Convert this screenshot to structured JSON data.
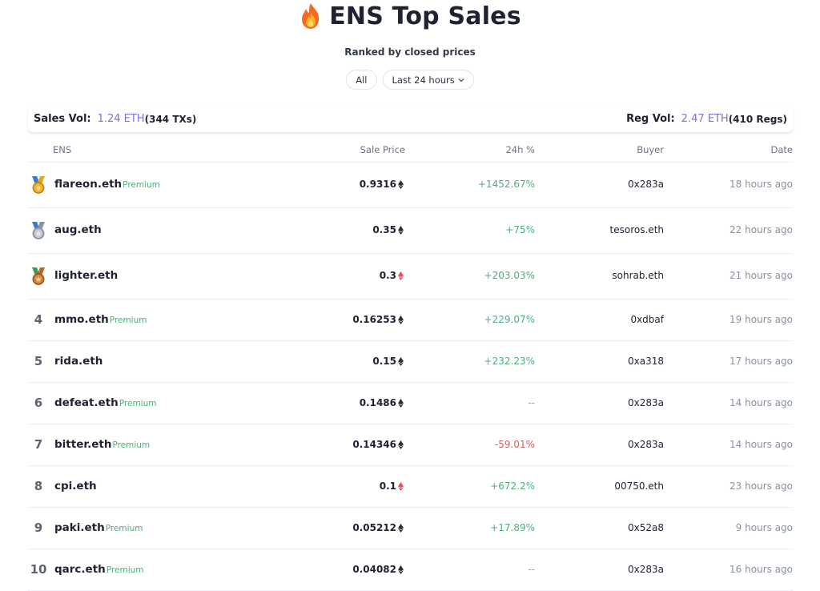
{
  "header": {
    "title": "ENS Top Sales",
    "title_icon": "fire-icon",
    "subtitle": "Ranked by closed prices"
  },
  "filters": {
    "category": "All",
    "period": "Last 24 hours",
    "period_icon": "chevron-down-icon"
  },
  "volume": {
    "sales_label": "Sales Vol:",
    "sales_value": "1.24 ETH",
    "sales_count": "(344 TXs)",
    "reg_label": "Reg Vol:",
    "reg_value": "2.47 ETH",
    "reg_count": "(410 Regs)"
  },
  "table": {
    "columns": {
      "ens": "ENS",
      "price": "Sale Price",
      "change": "24h %",
      "buyer": "Buyer",
      "date": "Date"
    },
    "rows": [
      {
        "rank": "1",
        "medal": "gold-medal-icon",
        "name": "flareon.eth",
        "premium": "Premium",
        "price": "0.9316",
        "currency": "eth",
        "change": "+1452.67%",
        "trend": "pos",
        "buyer": "0x283a",
        "date": "18 hours ago"
      },
      {
        "rank": "2",
        "medal": "silver-medal-icon",
        "name": "aug.eth",
        "premium": "",
        "price": "0.35",
        "currency": "eth",
        "change": "+75%",
        "trend": "pos",
        "buyer": "tesoros.eth",
        "date": "22 hours ago"
      },
      {
        "rank": "3",
        "medal": "bronze-medal-icon",
        "name": "lighter.eth",
        "premium": "",
        "price": "0.3",
        "currency": "weth",
        "change": "+203.03%",
        "trend": "pos",
        "buyer": "sohrab.eth",
        "date": "21 hours ago"
      },
      {
        "rank": "4",
        "medal": "",
        "name": "mmo.eth",
        "premium": "Premium",
        "price": "0.16253",
        "currency": "eth",
        "change": "+229.07%",
        "trend": "pos",
        "buyer": "0xdbaf",
        "date": "19 hours ago"
      },
      {
        "rank": "5",
        "medal": "",
        "name": "rida.eth",
        "premium": "",
        "price": "0.15",
        "currency": "eth",
        "change": "+232.23%",
        "trend": "pos",
        "buyer": "0xa318",
        "date": "17 hours ago"
      },
      {
        "rank": "6",
        "medal": "",
        "name": "defeat.eth",
        "premium": "Premium",
        "price": "0.1486",
        "currency": "eth",
        "change": "--",
        "trend": "neu",
        "buyer": "0x283a",
        "date": "14 hours ago"
      },
      {
        "rank": "7",
        "medal": "",
        "name": "bitter.eth",
        "premium": "Premium",
        "price": "0.14346",
        "currency": "eth",
        "change": "-59.01%",
        "trend": "neg",
        "buyer": "0x283a",
        "date": "14 hours ago"
      },
      {
        "rank": "8",
        "medal": "",
        "name": "cpi.eth",
        "premium": "",
        "price": "0.1",
        "currency": "weth",
        "change": "+672.2%",
        "trend": "pos",
        "buyer": "00750.eth",
        "date": "23 hours ago"
      },
      {
        "rank": "9",
        "medal": "",
        "name": "paki.eth",
        "premium": "Premium",
        "price": "0.05212",
        "currency": "eth",
        "change": "+17.89%",
        "trend": "pos",
        "buyer": "0x52a8",
        "date": "9 hours ago"
      },
      {
        "rank": "10",
        "medal": "",
        "name": "qarc.eth",
        "premium": "Premium",
        "price": "0.04082",
        "currency": "eth",
        "change": "--",
        "trend": "neu",
        "buyer": "0x283a",
        "date": "16 hours ago"
      }
    ]
  },
  "colors": {
    "accent": "#7b72d9",
    "positive": "#4caf7a",
    "negative": "#e05a5a",
    "eth": "#2b2f3a",
    "weth": "#e0555a"
  }
}
